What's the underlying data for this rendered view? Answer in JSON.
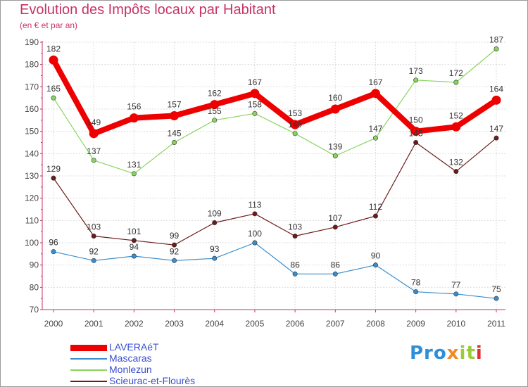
{
  "title": "Evolution des Impôts locaux par Habitant",
  "subtitle": "(en € et par an)",
  "logo": {
    "p1": "Pro",
    "p2": "x",
    "p3": "it",
    "p4": "i"
  },
  "chart_data": {
    "type": "line",
    "x": [
      "2000",
      "2001",
      "2002",
      "2003",
      "2004",
      "2005",
      "2006",
      "2007",
      "2008",
      "2009",
      "2010",
      "2011"
    ],
    "ylim": [
      70,
      190
    ],
    "yticks": [
      70,
      80,
      90,
      100,
      110,
      120,
      130,
      140,
      150,
      160,
      170,
      180,
      190
    ],
    "grid": true,
    "legend_position": "bottom-left",
    "series": [
      {
        "name": "LAVERAéT",
        "color": "#ee0000",
        "highlight": true,
        "values": [
          182,
          149,
          156,
          157,
          162,
          167,
          153,
          160,
          167,
          150,
          152,
          164
        ]
      },
      {
        "name": "Mascaras",
        "color": "#3a8dcc",
        "highlight": false,
        "values": [
          96,
          92,
          94,
          92,
          93,
          100,
          86,
          86,
          90,
          78,
          77,
          75
        ]
      },
      {
        "name": "Monlezun",
        "color": "#88d55e",
        "highlight": false,
        "values": [
          165,
          137,
          131,
          145,
          155,
          158,
          149,
          139,
          147,
          173,
          172,
          187
        ]
      },
      {
        "name": "Scieurac-et-Flourès",
        "color": "#6e1a1a",
        "highlight": false,
        "values": [
          129,
          103,
          101,
          99,
          109,
          113,
          103,
          107,
          112,
          145,
          132,
          147
        ]
      }
    ]
  }
}
